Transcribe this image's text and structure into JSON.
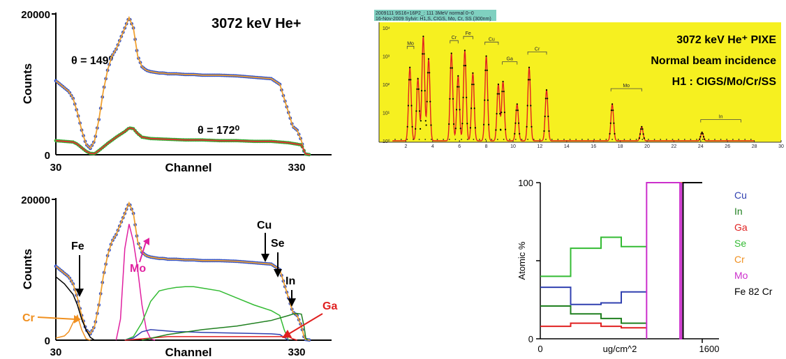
{
  "chart_data": [
    {
      "type": "scatter",
      "title": "3072 keV He+",
      "xlabel": "Channel",
      "ylabel": "Counts",
      "xlim": [
        30,
        350
      ],
      "ylim": [
        0,
        20000
      ],
      "xticks": [
        "30",
        "330"
      ],
      "yticks": [
        "0",
        "20000"
      ],
      "annotations": [
        "θ = 149⁰",
        "θ = 172⁰"
      ],
      "colors": {
        "data": "#3355cc",
        "fit": "#f0a030",
        "data2": "#33aa33",
        "fit2": "#e03030"
      },
      "series": [
        {
          "x": [
            30,
            35,
            40,
            45,
            50,
            55,
            60,
            65,
            70,
            75,
            80,
            85,
            90,
            95,
            100,
            105,
            110,
            115,
            120,
            125,
            130,
            135,
            140,
            145,
            150,
            155,
            160,
            170,
            180,
            190,
            200,
            220,
            240,
            260,
            280,
            290,
            300,
            305,
            310,
            315,
            318,
            320,
            325
          ],
          "values": [
            10500,
            10000,
            9500,
            9000,
            8000,
            6000,
            3500,
            1500,
            900,
            2000,
            5000,
            9000,
            12000,
            14000,
            15000,
            16500,
            18000,
            19500,
            18000,
            14000,
            12500,
            12000,
            11800,
            11700,
            11600,
            11600,
            11500,
            11500,
            11400,
            11400,
            11300,
            11300,
            11200,
            11000,
            10800,
            10000,
            6000,
            4000,
            3500,
            2000,
            500,
            100,
            0
          ]
        },
        {
          "x": [
            30,
            40,
            50,
            55,
            60,
            65,
            70,
            75,
            80,
            90,
            100,
            110,
            115,
            120,
            125,
            130,
            140,
            160,
            180,
            200,
            220,
            240,
            260,
            280,
            290,
            300,
            305,
            310,
            315,
            318,
            320,
            325
          ],
          "values": [
            2000,
            1900,
            1800,
            1500,
            1000,
            500,
            200,
            150,
            600,
            1600,
            2500,
            3300,
            3800,
            3700,
            3000,
            2500,
            2300,
            2200,
            2100,
            2100,
            2000,
            2000,
            1900,
            1900,
            1800,
            1700,
            1600,
            1500,
            1400,
            600,
            100,
            0
          ]
        }
      ]
    },
    {
      "type": "line",
      "title": "3072 keV He⁺ PIXE",
      "subtitle": "Normal beam incidence",
      "subtitle2": "H1 : CIGS/Mo/Cr/SS",
      "header_lines": [
        "2009111 9S16+16P2_: 111 3MeV normal 0~0",
        "16-Nov-2009 Sylvir: H1,S, CIGS, Mo, Cr, SS (300nm)"
      ],
      "background": "#f6f020",
      "xlim": [
        0,
        30
      ],
      "ylog": true,
      "xticks": [
        "2",
        "4",
        "6",
        "8",
        "10",
        "12",
        "14",
        "16",
        "18",
        "20",
        "22",
        "24",
        "26",
        "28",
        "30"
      ],
      "yticks": [
        "10⁰",
        "10¹",
        "10²",
        "10³",
        "10⁴"
      ],
      "peak_labels": [
        "Mo",
        "Cr",
        "Fe",
        "Cu",
        "Ga",
        "Cr",
        "Mo",
        "In"
      ],
      "peaks": [
        {
          "x": 2.3,
          "h": 2.6
        },
        {
          "x": 2.9,
          "h": 2.2
        },
        {
          "x": 3.3,
          "h": 3.7
        },
        {
          "x": 3.7,
          "h": 2.9
        },
        {
          "x": 5.4,
          "h": 3.1
        },
        {
          "x": 5.9,
          "h": 2.3
        },
        {
          "x": 6.4,
          "h": 3.2
        },
        {
          "x": 7.0,
          "h": 2.4
        },
        {
          "x": 8.0,
          "h": 3.0
        },
        {
          "x": 8.9,
          "h": 2.0
        },
        {
          "x": 9.25,
          "h": 2.1
        },
        {
          "x": 10.3,
          "h": 1.3
        },
        {
          "x": 11.2,
          "h": 2.6
        },
        {
          "x": 12.5,
          "h": 1.8
        },
        {
          "x": 17.4,
          "h": 1.3
        },
        {
          "x": 19.6,
          "h": 0.5
        },
        {
          "x": 24.1,
          "h": 0.3
        }
      ]
    },
    {
      "type": "line",
      "xlabel": "Channel",
      "ylabel": "Counts",
      "xlim": [
        30,
        350
      ],
      "ylim": [
        0,
        20000
      ],
      "xticks": [
        "30",
        "330"
      ],
      "yticks": [
        "0",
        "20000"
      ],
      "annotations": {
        "Fe": "Fe",
        "Mo": "Mo",
        "Cr": "Cr",
        "Cu": "Cu",
        "Se": "Se",
        "In": "In",
        "Ga": "Ga"
      },
      "colors": {
        "data": "#3355cc",
        "fit": "#f0a030",
        "Fe": "#000000",
        "Mo": "#e020a0",
        "Cr": "#f09020",
        "Se": "#33bb33",
        "In": "#208020",
        "Ga": "#e02020",
        "Cu": "#3040b0"
      },
      "series": [
        {
          "name": "data",
          "x": [
            30,
            35,
            40,
            45,
            50,
            55,
            60,
            65,
            70,
            75,
            80,
            85,
            90,
            95,
            100,
            105,
            110,
            115,
            120,
            125,
            130,
            135,
            140,
            145,
            150,
            155,
            160,
            170,
            180,
            190,
            200,
            220,
            240,
            260,
            280,
            290,
            300,
            305,
            310,
            315,
            318,
            320,
            325
          ],
          "values": [
            10500,
            10000,
            9500,
            9000,
            8000,
            6000,
            3500,
            1500,
            900,
            2000,
            5000,
            9000,
            12000,
            14000,
            15000,
            16500,
            18000,
            19500,
            18000,
            14000,
            12500,
            12000,
            11800,
            11700,
            11600,
            11600,
            11500,
            11500,
            11400,
            11400,
            11300,
            11300,
            11200,
            11000,
            10800,
            10000,
            6000,
            4000,
            3500,
            2000,
            500,
            100,
            0
          ]
        },
        {
          "name": "Fe",
          "x": [
            30,
            40,
            50,
            55,
            60,
            65,
            70,
            75
          ],
          "values": [
            9000,
            8000,
            6500,
            5000,
            3000,
            1500,
            400,
            0
          ]
        },
        {
          "name": "Cr",
          "x": [
            30,
            40,
            45,
            50,
            55,
            60,
            65,
            70
          ],
          "values": [
            300,
            600,
            1200,
            2500,
            3500,
            1500,
            200,
            0
          ]
        },
        {
          "name": "Mo",
          "x": [
            100,
            105,
            110,
            115,
            120,
            125,
            130,
            135,
            140,
            145
          ],
          "values": [
            0,
            3000,
            13000,
            16500,
            14000,
            10000,
            5000,
            1500,
            200,
            0
          ]
        },
        {
          "name": "Se",
          "x": [
            110,
            120,
            130,
            140,
            150,
            160,
            170,
            180,
            190,
            200,
            220,
            240,
            260,
            280,
            290,
            295,
            300
          ],
          "values": [
            0,
            500,
            2500,
            5500,
            7000,
            7300,
            7500,
            7600,
            7600,
            7400,
            7000,
            6000,
            5000,
            4200,
            3500,
            1500,
            0
          ]
        },
        {
          "name": "Cu",
          "x": [
            110,
            120,
            130,
            140,
            150,
            160,
            170,
            180,
            200,
            240,
            280,
            290,
            295,
            300
          ],
          "values": [
            0,
            300,
            1200,
            1500,
            1400,
            1300,
            1200,
            1200,
            1100,
            1000,
            900,
            800,
            400,
            0
          ]
        },
        {
          "name": "Ga",
          "x": [
            110,
            140,
            160,
            200,
            240,
            280,
            300,
            305,
            310
          ],
          "values": [
            0,
            300,
            500,
            500,
            500,
            500,
            500,
            200,
            0
          ]
        },
        {
          "name": "In",
          "x": [
            130,
            160,
            200,
            240,
            280,
            300,
            305,
            310,
            315,
            318,
            320,
            322
          ],
          "values": [
            0,
            800,
            1500,
            2000,
            2800,
            3500,
            3700,
            3800,
            3700,
            2000,
            300,
            0
          ]
        }
      ]
    },
    {
      "type": "line",
      "xlabel": "ug/cm^2",
      "ylabel": "Atomic %",
      "xlim": [
        0,
        1600
      ],
      "ylim": [
        0,
        100
      ],
      "xticks": [
        "0",
        "1600"
      ],
      "yticks": [
        "0",
        "100"
      ],
      "legend": "right",
      "series": [
        {
          "name": "Cu",
          "color": "#3040b0",
          "x": [
            0,
            300,
            300,
            600,
            600,
            800,
            800,
            1050
          ],
          "values": [
            33,
            33,
            22,
            22,
            23,
            23,
            30,
            30
          ]
        },
        {
          "name": "In",
          "color": "#208020",
          "x": [
            0,
            300,
            300,
            600,
            600,
            800,
            800,
            1050
          ],
          "values": [
            21,
            21,
            16,
            16,
            13,
            13,
            10,
            10
          ]
        },
        {
          "name": "Ga",
          "color": "#e02020",
          "x": [
            0,
            300,
            300,
            600,
            600,
            800,
            800,
            1050
          ],
          "values": [
            8,
            8,
            10,
            10,
            8,
            8,
            7,
            7
          ]
        },
        {
          "name": "Se",
          "color": "#33bb33",
          "x": [
            0,
            300,
            300,
            600,
            600,
            800,
            800,
            1050
          ],
          "values": [
            40,
            40,
            58,
            58,
            65,
            65,
            59,
            59
          ]
        },
        {
          "name": "Cr",
          "color": "#f09020",
          "x": [
            1380,
            1410
          ],
          "values": [
            100,
            100
          ]
        },
        {
          "name": "Mo",
          "color": "#cc30cc",
          "x": [
            1050,
            1050,
            1380,
            1380,
            1395,
            1395
          ],
          "values": [
            0,
            100,
            100,
            0,
            0,
            100
          ]
        },
        {
          "name": "Fe 82 Cr",
          "color": "#000000",
          "x": [
            1410,
            1410,
            1600
          ],
          "values": [
            0,
            100,
            100
          ]
        }
      ]
    }
  ]
}
